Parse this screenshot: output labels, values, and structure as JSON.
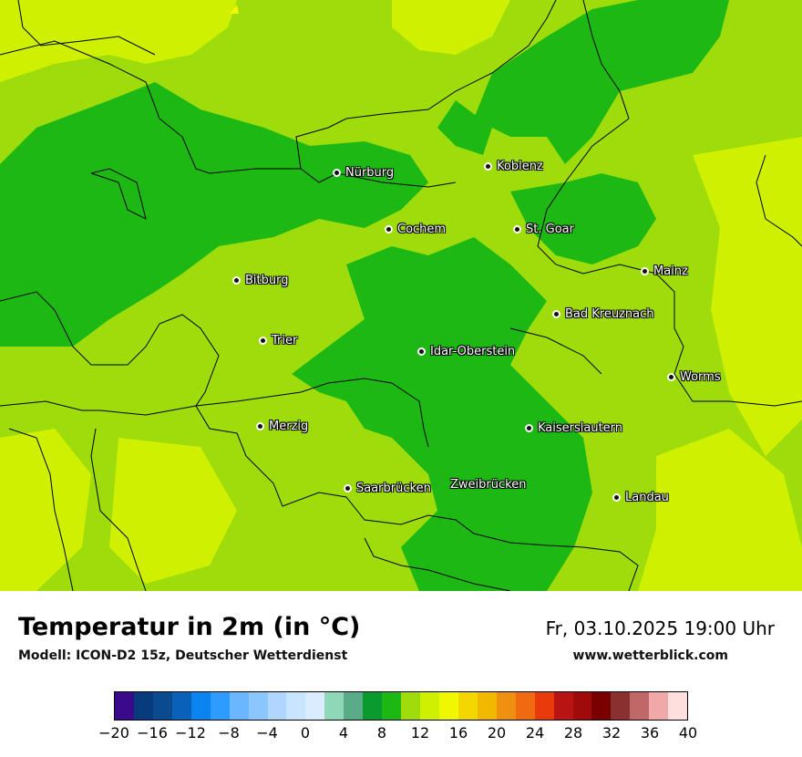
{
  "map": {
    "description_colors": {
      "dark_green": "#1db814",
      "green": "#9edc0c",
      "yellow_green": "#cff000"
    },
    "cities": [
      {
        "name": "Nürburg"
      },
      {
        "name": "Koblenz"
      },
      {
        "name": "Cochem"
      },
      {
        "name": "St. Goar"
      },
      {
        "name": "Mainz"
      },
      {
        "name": "Bitburg"
      },
      {
        "name": "Bad Kreuznach"
      },
      {
        "name": "Trier"
      },
      {
        "name": "Idar-Oberstein"
      },
      {
        "name": "Worms"
      },
      {
        "name": "Merzig"
      },
      {
        "name": "Kaiserslautern"
      },
      {
        "name": "Saarbrücken"
      },
      {
        "name": "Zweibrücken"
      },
      {
        "name": "Landau"
      }
    ]
  },
  "footer": {
    "title": "Temperatur in 2m (in °C)",
    "model": "Modell: ICON-D2 15z, Deutscher Wetterdienst",
    "datetime": "Fr, 03.10.2025 19:00 Uhr",
    "website": "www.wetterblick.com"
  },
  "legend": {
    "colors": [
      "#3a0a8c",
      "#083a7e",
      "#0a4a8e",
      "#0a62b8",
      "#0a84f0",
      "#2e9cff",
      "#6ab6ff",
      "#8cc6ff",
      "#aed6ff",
      "#c8e4ff",
      "#dcecff",
      "#8ed8b8",
      "#5aac88",
      "#0a9a2e",
      "#1db814",
      "#9edc0c",
      "#cff000",
      "#f0f800",
      "#f2d800",
      "#f2b800",
      "#f09010",
      "#f06a10",
      "#e83a0a",
      "#b81414",
      "#a00a0a",
      "#7a0000",
      "#8a3030",
      "#c06868",
      "#f0a8a8",
      "#ffdede"
    ],
    "ticks": [
      "−20",
      "−16",
      "−12",
      "−8",
      "−4",
      "0",
      "4",
      "8",
      "12",
      "16",
      "20",
      "24",
      "28",
      "32",
      "36",
      "40"
    ]
  }
}
